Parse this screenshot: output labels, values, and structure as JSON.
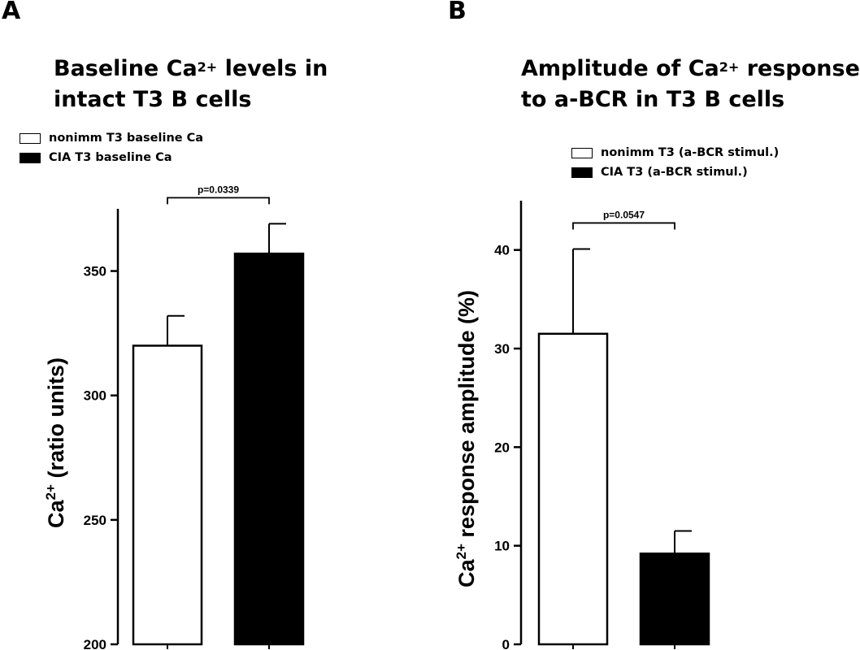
{
  "chart_data": [
    {
      "panel": "A",
      "type": "bar",
      "title": "Baseline Ca2+ levels in intact T3 B cells",
      "title_lines": [
        {
          "pre": "Baseline Ca",
          "sup": "2+",
          "post": " levels in"
        },
        {
          "pre": "intact T3 B cells",
          "sup": "",
          "post": ""
        }
      ],
      "categories": [
        "nonimm T3 baseline Ca",
        "CIA T3 baseline Ca"
      ],
      "values": [
        320,
        357
      ],
      "errors": [
        12,
        12
      ],
      "fills": [
        "#ffffff",
        "#000000"
      ],
      "ylim": [
        200,
        375
      ],
      "yticks": [
        200,
        250,
        300,
        350
      ],
      "ytick_labels": [
        "200",
        "250",
        "300",
        "350"
      ],
      "ylabel": {
        "pre": "Ca",
        "sup": "2+",
        "post": " (ratio units)"
      },
      "xlabel": "",
      "legend": [
        {
          "label": "nonimm T3 baseline Ca",
          "filled": false
        },
        {
          "label": "CIA T3 baseline Ca",
          "filled": true
        }
      ],
      "annotation": {
        "text": "p=0.0339",
        "between": [
          0,
          1
        ]
      }
    },
    {
      "panel": "B",
      "type": "bar",
      "title": "Amplitude of Ca2+ response to a-BCR in T3 B cells",
      "title_lines": [
        {
          "pre": "Amplitude of Ca",
          "sup": "2+",
          "post": " response"
        },
        {
          "pre": "to a-BCR in T3 B cells",
          "sup": "",
          "post": ""
        }
      ],
      "categories": [
        "nonimm T3 (a-BCR  stimul.)",
        "CIA T3 (a-BCR stimul.)"
      ],
      "values": [
        31.5,
        9.2
      ],
      "errors": [
        8.6,
        2.3
      ],
      "fills": [
        "#ffffff",
        "#000000"
      ],
      "ylim": [
        0,
        45
      ],
      "yticks": [
        0,
        10,
        20,
        30,
        40
      ],
      "ytick_labels": [
        "0",
        "10",
        "20",
        "30",
        "40"
      ],
      "ylabel": {
        "pre": "Ca",
        "sup": "2+",
        "post": " response amplitude (%)"
      },
      "xlabel": "",
      "legend": [
        {
          "label": "nonimm T3 (a-BCR  stimul.)",
          "filled": false
        },
        {
          "label": "CIA T3 (a-BCR stimul.)",
          "filled": true
        }
      ],
      "annotation": {
        "text": "p=0.0547",
        "between": [
          0,
          1
        ]
      }
    }
  ]
}
